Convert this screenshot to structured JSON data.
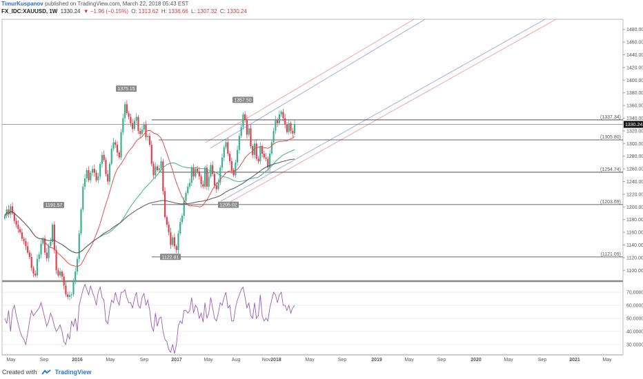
{
  "header": {
    "author": "TimurKuspanov",
    "published": "published on TradingView.com, March 22, 2018 05:43 EST",
    "symbol": "FX_IDC:XAUUSD, 1W",
    "last": "1330.24",
    "change": "▼ −1.96 (−0.15%)",
    "open_label": "O:",
    "open": "1313.62",
    "high_label": "H:",
    "high": "1336.66",
    "low_label": "L:",
    "low": "1307.32",
    "close_label": "C:",
    "close": "1330.24"
  },
  "footer": {
    "created": "Created with",
    "brand": "TradingView"
  },
  "colors": {
    "up": "#3bb08f",
    "down": "#e0404d",
    "ma_dark": "#555555",
    "ma_red": "#e05050",
    "ma_green": "#3bb08f",
    "rsi": "#9b59b6",
    "channel_red": "#f29aa0",
    "channel_blue": "#9aa6e6"
  },
  "chart_data": {
    "type": "candlestick",
    "symbol": "FX_IDC:XAUUSD",
    "interval": "1W",
    "price_axis": [
      "1480.00",
      "1460.00",
      "1440.00",
      "1420.00",
      "1400.00",
      "1380.00",
      "1360.00",
      "1340.00",
      "1320.00",
      "1300.00",
      "1280.00",
      "1260.00",
      "1240.00",
      "1220.00",
      "1200.00",
      "1180.00",
      "1160.00",
      "1140.00",
      "1120.00",
      "1100.00"
    ],
    "ylim": [
      1084,
      1496
    ],
    "rsi_axis": [
      "70.0000",
      "60.0000",
      "50.0000",
      "40.0000",
      "30.0000"
    ],
    "rsi_ylim": [
      22,
      78
    ],
    "time_axis": [
      "May",
      "Sep",
      "2016",
      "May",
      "Sep",
      "2017",
      "May",
      "Aug",
      "Nov",
      "2018",
      "May",
      "Sep",
      "2019",
      "May",
      "Sep",
      "2020",
      "May",
      "Sep",
      "2021",
      "May"
    ],
    "current_price": "1330.24",
    "levels": [
      {
        "label": "(1337.34)",
        "value": 1337.34
      },
      {
        "label": "(1305.80)",
        "value": 1305.8
      },
      {
        "label": "(1254.74)",
        "value": 1254.74
      },
      {
        "label": "(1203.69)",
        "value": 1203.69
      },
      {
        "label": "(1121.09)",
        "value": 1121.09
      }
    ],
    "annotations": [
      {
        "label": "1375.15",
        "value": 1375.15
      },
      {
        "label": "1357.50",
        "value": 1357.5
      },
      {
        "label": "1191.57",
        "value": 1191.57
      },
      {
        "label": "1205.02",
        "value": 1205.02
      },
      {
        "label": "1122.81",
        "value": 1122.81
      }
    ],
    "closes": [
      1186,
      1196,
      1188,
      1201,
      1190,
      1178,
      1172,
      1165,
      1160,
      1150,
      1146,
      1138,
      1128,
      1121,
      1104,
      1095,
      1092,
      1118,
      1125,
      1142,
      1150,
      1128,
      1119,
      1138,
      1145,
      1172,
      1132,
      1100,
      1092,
      1098,
      1090,
      1076,
      1062,
      1058,
      1061,
      1062,
      1082,
      1098,
      1118,
      1158,
      1196,
      1232,
      1245,
      1258,
      1242,
      1254,
      1260,
      1254,
      1242,
      1248,
      1268,
      1282,
      1274,
      1252,
      1240,
      1268,
      1292,
      1302,
      1298,
      1286,
      1278,
      1318,
      1340,
      1362,
      1348,
      1342,
      1332,
      1323,
      1336,
      1342,
      1320,
      1315,
      1322,
      1330,
      1310,
      1312,
      1298,
      1268,
      1250,
      1264,
      1258,
      1261,
      1272,
      1225,
      1184,
      1172,
      1160,
      1140,
      1152,
      1138,
      1132,
      1158,
      1176,
      1186,
      1210,
      1222,
      1232,
      1238,
      1262,
      1248,
      1260,
      1256,
      1248,
      1236,
      1232,
      1262,
      1232,
      1248,
      1266,
      1252,
      1234,
      1228,
      1238,
      1262,
      1278,
      1294,
      1302,
      1284,
      1272,
      1258,
      1250,
      1270,
      1290,
      1312,
      1326,
      1346,
      1338,
      1314,
      1324,
      1296,
      1282,
      1300,
      1276,
      1272,
      1296,
      1284,
      1278,
      1276,
      1262,
      1284,
      1302,
      1320,
      1337,
      1332,
      1346,
      1350,
      1340,
      1330,
      1318,
      1332,
      1320,
      1316,
      1330.24
    ],
    "rsi": [
      50,
      46,
      56,
      40,
      56,
      60,
      52,
      46,
      40,
      36,
      34,
      30,
      39,
      48,
      56,
      52,
      54,
      56,
      58,
      62,
      56,
      50,
      44,
      48,
      54,
      50,
      44,
      40,
      42,
      45,
      40,
      32,
      30,
      38,
      34,
      48,
      44,
      50,
      40,
      60,
      66,
      72,
      76,
      72,
      68,
      75,
      70,
      66,
      60,
      70,
      74,
      66,
      64,
      48,
      46,
      56,
      64,
      62,
      70,
      64,
      60,
      70,
      70,
      72,
      66,
      62,
      62,
      58,
      65,
      70,
      60,
      58,
      66,
      69,
      60,
      64,
      56,
      44,
      40,
      54,
      44,
      50,
      51,
      40,
      34,
      32,
      26,
      24,
      30,
      23,
      30,
      44,
      48,
      46,
      56,
      56,
      54,
      56,
      66,
      54,
      60,
      58,
      50,
      54,
      47,
      62,
      50,
      54,
      66,
      58,
      50,
      48,
      54,
      62,
      60,
      66,
      70,
      58,
      60,
      48,
      48,
      58,
      64,
      68,
      72,
      74,
      66,
      58,
      62,
      52,
      50,
      62,
      50,
      52,
      68,
      52,
      48,
      50,
      48,
      58,
      64,
      70,
      68,
      62,
      68,
      70,
      60,
      60,
      56,
      60,
      54,
      58,
      60
    ]
  }
}
